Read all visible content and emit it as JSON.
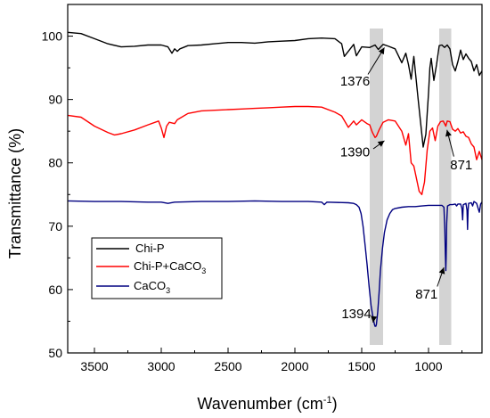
{
  "chart_data": {
    "type": "line",
    "title": "",
    "xlabel": "Wavenumber (cm",
    "xlabel_sup": "-1",
    "xlabel_end": ")",
    "ylabel": "Transmittance (%)",
    "xlim": [
      3700,
      600
    ],
    "ylim": [
      50,
      105
    ],
    "x_reversed": true,
    "x_ticks": [
      3500,
      3000,
      2500,
      2000,
      1500,
      1000
    ],
    "y_ticks": [
      50,
      60,
      70,
      80,
      90,
      100
    ],
    "grid": false,
    "legend_position": "lower-left",
    "highlight_bands": [
      [
        1440,
        1340
      ],
      [
        920,
        830
      ]
    ],
    "highlight_color": "#d3d3d3",
    "series": [
      {
        "name": "Chi-P",
        "color": "#000000",
        "points": [
          [
            3700,
            100.6
          ],
          [
            3600,
            100.4
          ],
          [
            3500,
            99.6
          ],
          [
            3400,
            98.8
          ],
          [
            3300,
            98.3
          ],
          [
            3200,
            98.4
          ],
          [
            3100,
            98.6
          ],
          [
            3000,
            98.6
          ],
          [
            2950,
            98.3
          ],
          [
            2920,
            97.3
          ],
          [
            2900,
            98.0
          ],
          [
            2880,
            97.6
          ],
          [
            2860,
            98.0
          ],
          [
            2800,
            98.5
          ],
          [
            2700,
            98.6
          ],
          [
            2600,
            98.8
          ],
          [
            2500,
            99.0
          ],
          [
            2400,
            99.0
          ],
          [
            2300,
            98.9
          ],
          [
            2200,
            99.1
          ],
          [
            2100,
            99.2
          ],
          [
            2000,
            99.3
          ],
          [
            1900,
            99.6
          ],
          [
            1800,
            99.7
          ],
          [
            1700,
            99.6
          ],
          [
            1650,
            98.8
          ],
          [
            1630,
            96.8
          ],
          [
            1600,
            97.6
          ],
          [
            1560,
            98.7
          ],
          [
            1540,
            96.9
          ],
          [
            1500,
            98.3
          ],
          [
            1440,
            98.2
          ],
          [
            1400,
            98.6
          ],
          [
            1376,
            97.9
          ],
          [
            1340,
            98.7
          ],
          [
            1300,
            98.4
          ],
          [
            1250,
            98.0
          ],
          [
            1200,
            95.8
          ],
          [
            1170,
            97.3
          ],
          [
            1150,
            95.5
          ],
          [
            1130,
            93.2
          ],
          [
            1110,
            96.8
          ],
          [
            1080,
            90.5
          ],
          [
            1060,
            86.5
          ],
          [
            1040,
            82.5
          ],
          [
            1020,
            84.5
          ],
          [
            1000,
            91.0
          ],
          [
            990,
            95.0
          ],
          [
            980,
            96.5
          ],
          [
            960,
            93.0
          ],
          [
            940,
            95.5
          ],
          [
            920,
            98.5
          ],
          [
            900,
            98.6
          ],
          [
            880,
            98.2
          ],
          [
            860,
            98.6
          ],
          [
            840,
            98.0
          ],
          [
            820,
            95.5
          ],
          [
            800,
            94.5
          ],
          [
            780,
            96.0
          ],
          [
            760,
            97.8
          ],
          [
            740,
            96.3
          ],
          [
            720,
            97.2
          ],
          [
            700,
            96.5
          ],
          [
            680,
            96.0
          ],
          [
            660,
            94.5
          ],
          [
            640,
            95.5
          ],
          [
            620,
            93.8
          ],
          [
            600,
            94.5
          ]
        ]
      },
      {
        "name": "Chi-P+CaCO3",
        "name_base": "Chi-P+CaCO",
        "name_sub": "3",
        "color": "#ff0000",
        "points": [
          [
            3700,
            87.5
          ],
          [
            3600,
            87.2
          ],
          [
            3500,
            85.8
          ],
          [
            3400,
            84.8
          ],
          [
            3350,
            84.4
          ],
          [
            3300,
            84.6
          ],
          [
            3200,
            85.2
          ],
          [
            3100,
            86.0
          ],
          [
            3020,
            86.6
          ],
          [
            3000,
            85.5
          ],
          [
            2980,
            84.0
          ],
          [
            2960,
            85.8
          ],
          [
            2940,
            86.4
          ],
          [
            2900,
            86.2
          ],
          [
            2880,
            86.8
          ],
          [
            2800,
            87.8
          ],
          [
            2700,
            88.2
          ],
          [
            2600,
            88.3
          ],
          [
            2500,
            88.4
          ],
          [
            2400,
            88.5
          ],
          [
            2300,
            88.6
          ],
          [
            2200,
            88.7
          ],
          [
            2100,
            88.8
          ],
          [
            2000,
            88.9
          ],
          [
            1900,
            88.9
          ],
          [
            1800,
            88.8
          ],
          [
            1700,
            88.0
          ],
          [
            1650,
            87.4
          ],
          [
            1600,
            85.6
          ],
          [
            1560,
            86.6
          ],
          [
            1540,
            86.0
          ],
          [
            1500,
            86.8
          ],
          [
            1460,
            86.2
          ],
          [
            1440,
            86.0
          ],
          [
            1420,
            84.8
          ],
          [
            1400,
            84.0
          ],
          [
            1390,
            84.2
          ],
          [
            1370,
            85.2
          ],
          [
            1340,
            86.4
          ],
          [
            1300,
            86.8
          ],
          [
            1250,
            86.6
          ],
          [
            1200,
            85.0
          ],
          [
            1170,
            82.8
          ],
          [
            1150,
            84.6
          ],
          [
            1130,
            80.0
          ],
          [
            1110,
            79.5
          ],
          [
            1090,
            77.5
          ],
          [
            1070,
            75.5
          ],
          [
            1050,
            75.0
          ],
          [
            1030,
            77.0
          ],
          [
            1010,
            82.0
          ],
          [
            990,
            85.0
          ],
          [
            970,
            85.5
          ],
          [
            950,
            83.5
          ],
          [
            930,
            85.8
          ],
          [
            910,
            86.5
          ],
          [
            890,
            86.6
          ],
          [
            871,
            85.8
          ],
          [
            860,
            86.6
          ],
          [
            840,
            86.5
          ],
          [
            820,
            85.3
          ],
          [
            800,
            85.0
          ],
          [
            780,
            85.4
          ],
          [
            760,
            84.7
          ],
          [
            740,
            84.9
          ],
          [
            720,
            84.2
          ],
          [
            700,
            84.0
          ],
          [
            680,
            83.0
          ],
          [
            660,
            82.5
          ],
          [
            640,
            80.5
          ],
          [
            620,
            81.8
          ],
          [
            600,
            80.5
          ]
        ]
      },
      {
        "name": "CaCO3",
        "name_base": "CaCO",
        "name_sub": "3",
        "color": "#000080",
        "points": [
          [
            3700,
            74.0
          ],
          [
            3500,
            73.9
          ],
          [
            3300,
            73.9
          ],
          [
            3100,
            73.8
          ],
          [
            3000,
            73.8
          ],
          [
            2950,
            73.6
          ],
          [
            2900,
            73.8
          ],
          [
            2700,
            73.9
          ],
          [
            2500,
            73.9
          ],
          [
            2300,
            74.0
          ],
          [
            2100,
            73.9
          ],
          [
            1900,
            73.9
          ],
          [
            1800,
            73.8
          ],
          [
            1780,
            73.4
          ],
          [
            1760,
            73.8
          ],
          [
            1600,
            73.7
          ],
          [
            1560,
            73.6
          ],
          [
            1540,
            73.4
          ],
          [
            1520,
            73.0
          ],
          [
            1505,
            72.0
          ],
          [
            1490,
            70.0
          ],
          [
            1475,
            67.0
          ],
          [
            1460,
            64.0
          ],
          [
            1445,
            60.5
          ],
          [
            1430,
            57.5
          ],
          [
            1415,
            55.5
          ],
          [
            1405,
            54.5
          ],
          [
            1400,
            54.2
          ],
          [
            1394,
            54.2
          ],
          [
            1390,
            54.5
          ],
          [
            1380,
            56.5
          ],
          [
            1370,
            59.5
          ],
          [
            1360,
            63.0
          ],
          [
            1345,
            66.5
          ],
          [
            1330,
            69.0
          ],
          [
            1310,
            71.0
          ],
          [
            1290,
            72.0
          ],
          [
            1270,
            72.6
          ],
          [
            1250,
            72.8
          ],
          [
            1200,
            73.0
          ],
          [
            1150,
            73.1
          ],
          [
            1100,
            73.1
          ],
          [
            1050,
            73.2
          ],
          [
            1000,
            73.3
          ],
          [
            950,
            73.3
          ],
          [
            900,
            73.3
          ],
          [
            885,
            73.0
          ],
          [
            878,
            69.5
          ],
          [
            874,
            65.5
          ],
          [
            871,
            63.0
          ],
          [
            868,
            65.0
          ],
          [
            864,
            70.5
          ],
          [
            858,
            73.2
          ],
          [
            840,
            73.4
          ],
          [
            820,
            73.4
          ],
          [
            800,
            73.5
          ],
          [
            790,
            73.2
          ],
          [
            780,
            73.5
          ],
          [
            760,
            73.5
          ],
          [
            750,
            72.8
          ],
          [
            745,
            71.0
          ],
          [
            740,
            73.4
          ],
          [
            720,
            73.6
          ],
          [
            712,
            72.5
          ],
          [
            708,
            69.5
          ],
          [
            704,
            72.5
          ],
          [
            700,
            73.6
          ],
          [
            680,
            73.7
          ],
          [
            670,
            73.2
          ],
          [
            660,
            73.9
          ],
          [
            640,
            73.6
          ],
          [
            620,
            72.2
          ],
          [
            610,
            73.5
          ],
          [
            600,
            73.8
          ]
        ]
      }
    ],
    "annotations": [
      {
        "text": "1376",
        "tx": 1550,
        "ty": 92.2,
        "ax": 1330,
        "ay": 98.2
      },
      {
        "text": "1390",
        "tx": 1550,
        "ty": 81.0,
        "ax": 1330,
        "ay": 83.5
      },
      {
        "text": "871",
        "tx": 755,
        "ty": 79.0,
        "ax": 862,
        "ay": 85.2
      },
      {
        "text": "1394",
        "tx": 1540,
        "ty": 55.5,
        "ax": 1415,
        "ay": 54.8
      },
      {
        "text": "871",
        "tx": 1015,
        "ty": 58.6,
        "ax": 885,
        "ay": 63.5
      }
    ]
  }
}
